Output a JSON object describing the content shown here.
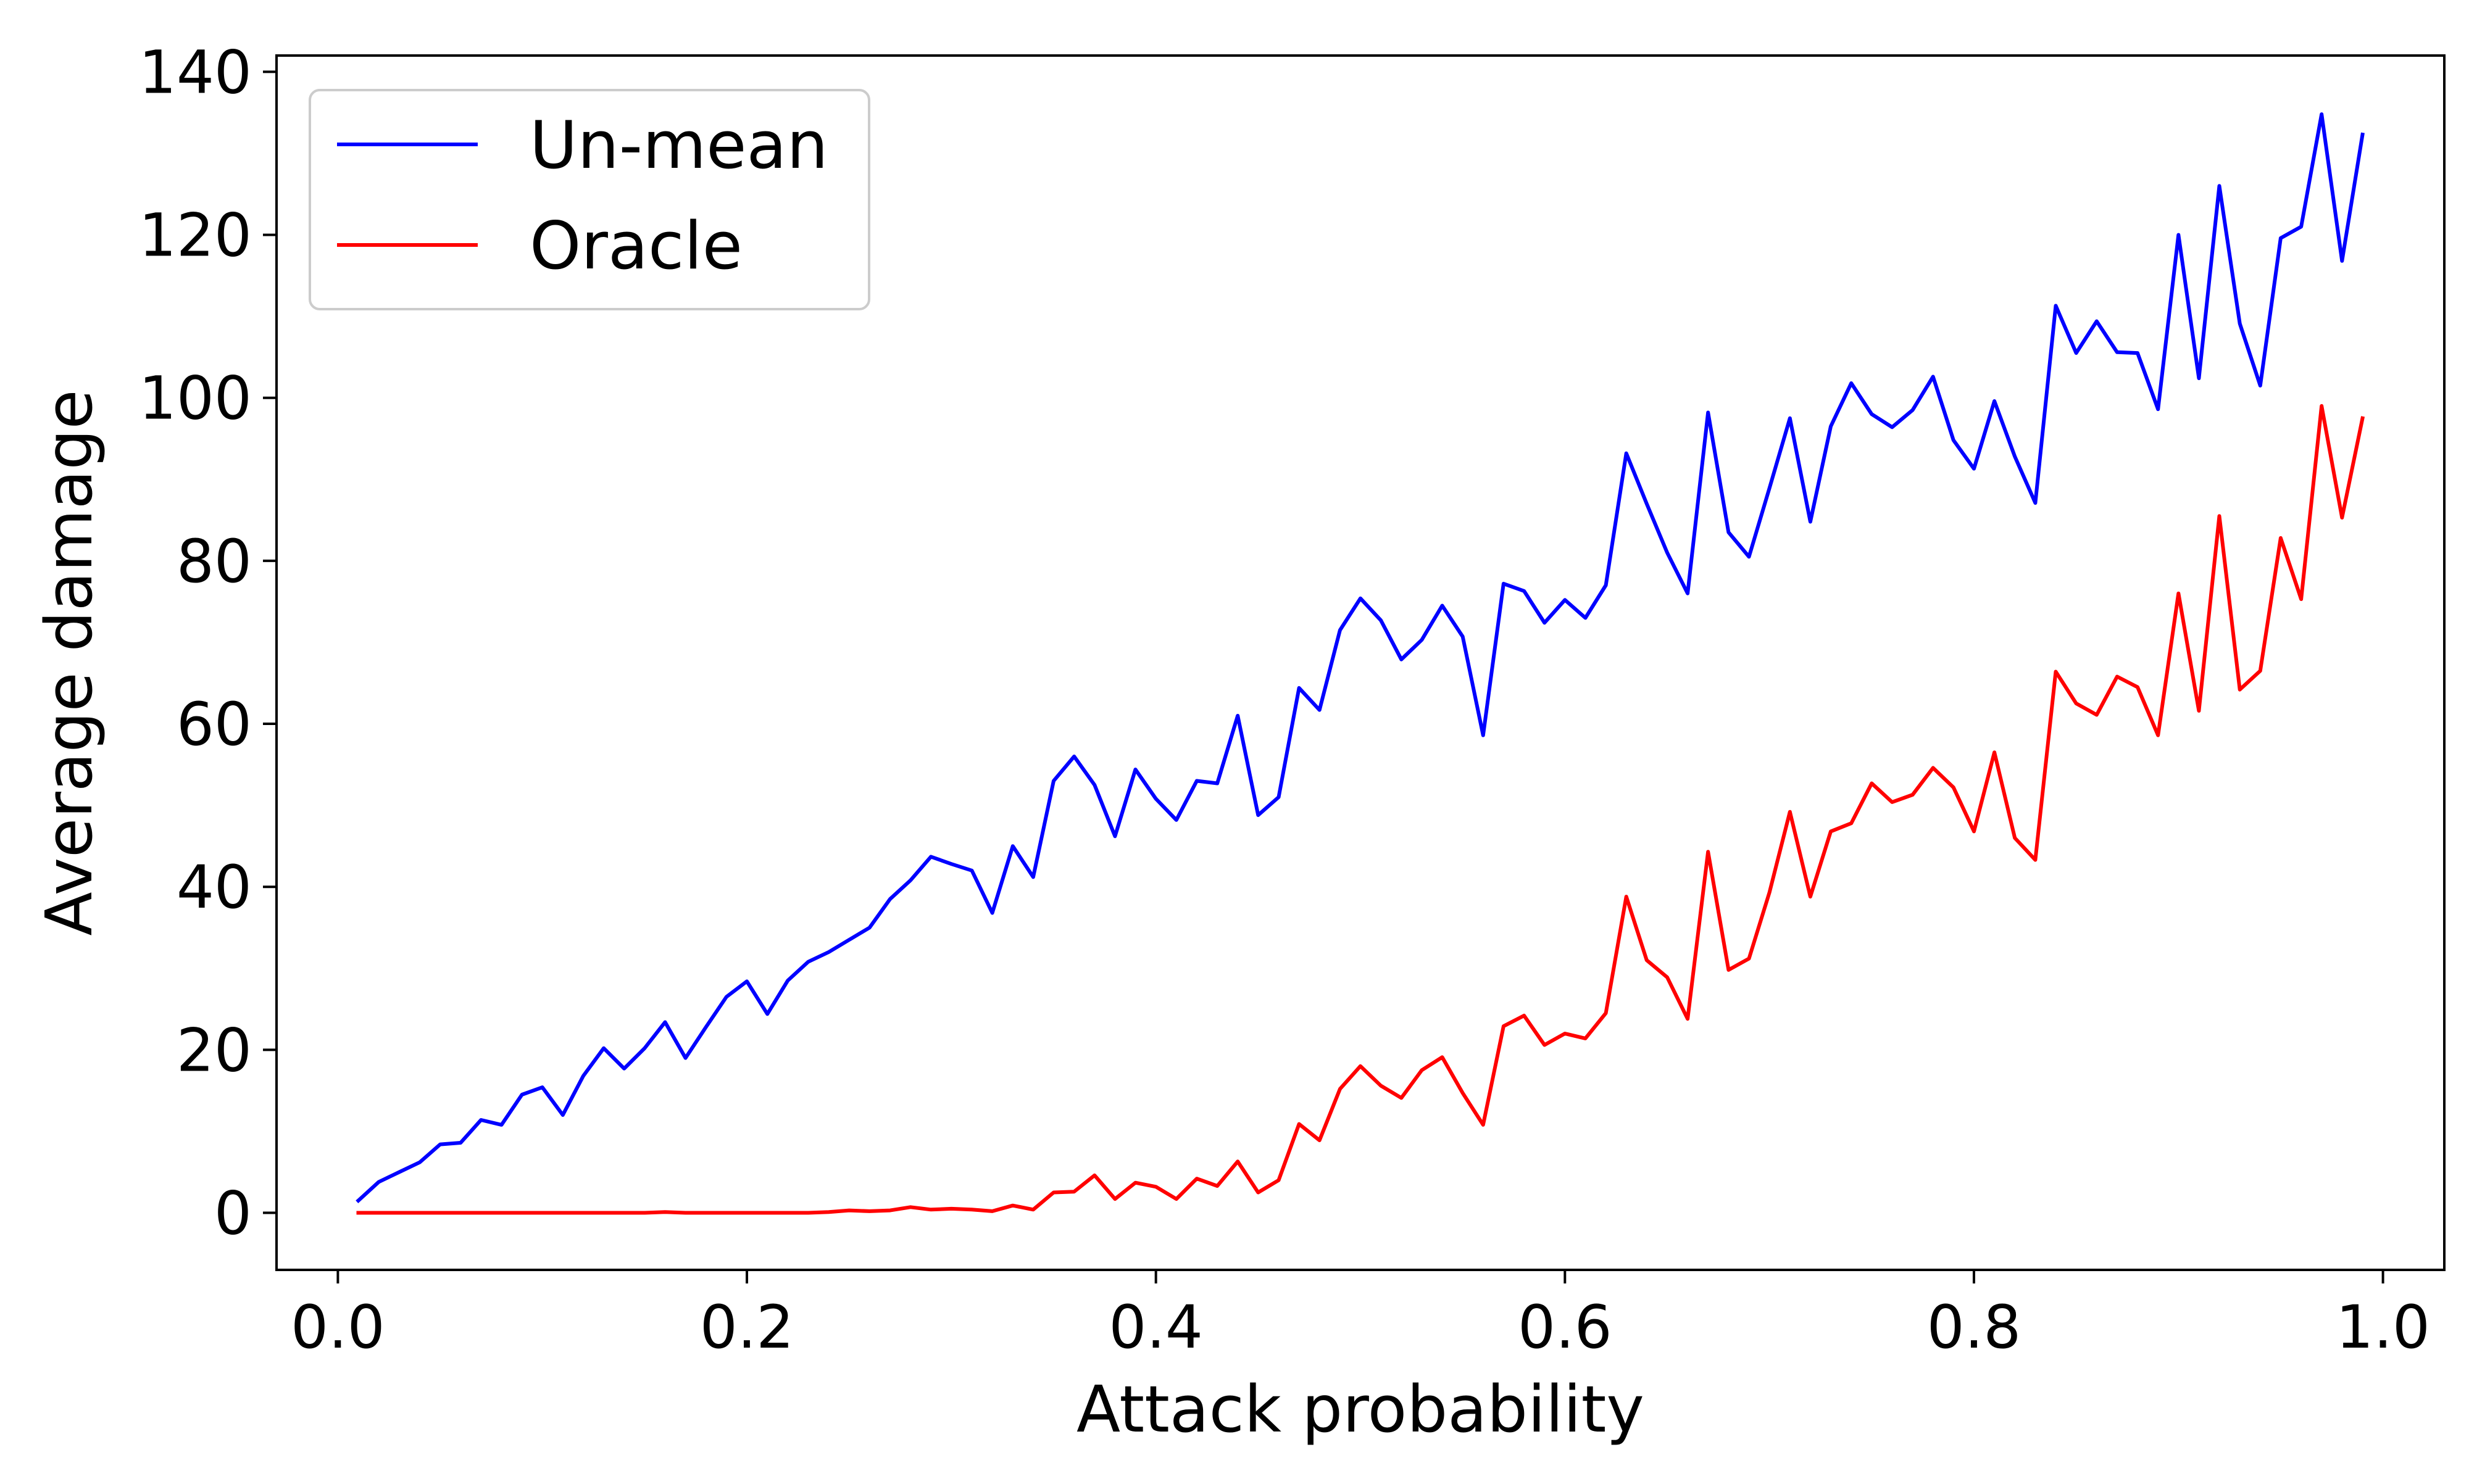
{
  "chart_data": {
    "type": "line",
    "title": "",
    "xlabel": "Attack probability",
    "ylabel": "Average damage",
    "xlim": [
      -0.03,
      1.03
    ],
    "ylim": [
      -7,
      142
    ],
    "x_ticks": [
      0.0,
      0.2,
      0.4,
      0.6,
      0.8,
      1.0
    ],
    "x_tick_labels": [
      "0.0",
      "0.2",
      "0.4",
      "0.6",
      "0.8",
      "1.0"
    ],
    "y_ticks": [
      0,
      20,
      40,
      60,
      80,
      100,
      120,
      140
    ],
    "y_tick_labels": [
      "0",
      "20",
      "40",
      "60",
      "80",
      "100",
      "120",
      "140"
    ],
    "grid": false,
    "legend_position": "top-left",
    "x": [
      0.01,
      0.02,
      0.03,
      0.04,
      0.05,
      0.06,
      0.07,
      0.08,
      0.09,
      0.1,
      0.11,
      0.12,
      0.13,
      0.14,
      0.15,
      0.16,
      0.17,
      0.18,
      0.19,
      0.2,
      0.21,
      0.22,
      0.23,
      0.24,
      0.25,
      0.26,
      0.27,
      0.28,
      0.29,
      0.3,
      0.31,
      0.32,
      0.33,
      0.34,
      0.35,
      0.36,
      0.37,
      0.38,
      0.39,
      0.4,
      0.41,
      0.42,
      0.43,
      0.44,
      0.45,
      0.46,
      0.47,
      0.48,
      0.49,
      0.5,
      0.51,
      0.52,
      0.53,
      0.54,
      0.55,
      0.56,
      0.57,
      0.58,
      0.59,
      0.6,
      0.61,
      0.62,
      0.63,
      0.64,
      0.65,
      0.66,
      0.67,
      0.68,
      0.69,
      0.7,
      0.71,
      0.72,
      0.73,
      0.74,
      0.75,
      0.76,
      0.77,
      0.78,
      0.79,
      0.8,
      0.81,
      0.82,
      0.83,
      0.84,
      0.85,
      0.86,
      0.87,
      0.88,
      0.89,
      0.9,
      0.91,
      0.92,
      0.93,
      0.94,
      0.95,
      0.96,
      0.97,
      0.98,
      0.99
    ],
    "series": [
      {
        "name": "Un-mean",
        "color": "#0000ff",
        "values": [
          1.5,
          3.8,
          5.0,
          6.2,
          8.4,
          8.6,
          11.4,
          10.8,
          14.5,
          15.4,
          12.0,
          16.8,
          20.2,
          17.7,
          20.2,
          23.4,
          19.0,
          22.8,
          26.5,
          28.4,
          24.4,
          28.5,
          30.8,
          32.0,
          33.5,
          35.0,
          38.5,
          40.8,
          43.7,
          42.8,
          42.0,
          36.8,
          45.0,
          41.2,
          53.0,
          56.0,
          52.5,
          46.2,
          54.4,
          50.8,
          48.2,
          53.0,
          52.7,
          61.0,
          48.8,
          51.0,
          64.4,
          61.7,
          71.5,
          75.4,
          72.7,
          67.9,
          70.3,
          74.5,
          70.7,
          58.6,
          77.2,
          76.3,
          72.4,
          75.2,
          73.0,
          77.0,
          93.2,
          87.0,
          81.0,
          76.0,
          98.2,
          83.5,
          80.5,
          88.9,
          97.5,
          84.8,
          96.5,
          101.8,
          98.0,
          96.4,
          98.5,
          102.6,
          94.8,
          91.3,
          99.6,
          92.8,
          87.1,
          111.3,
          105.5,
          109.4,
          105.6,
          105.5,
          98.6,
          120.0,
          102.4,
          126.0,
          109.1,
          101.5,
          119.6,
          121.0,
          134.8,
          116.8,
          132.3
        ]
      },
      {
        "name": "Oracle",
        "color": "#ff0000",
        "values": [
          0,
          0,
          0,
          0,
          0,
          0,
          0,
          0,
          0,
          0,
          0,
          0,
          0,
          0,
          0,
          0.1,
          0,
          0,
          0,
          0,
          0,
          0,
          0,
          0.1,
          0.3,
          0.2,
          0.3,
          0.7,
          0.4,
          0.5,
          0.4,
          0.2,
          0.9,
          0.4,
          2.5,
          2.6,
          4.6,
          1.7,
          3.7,
          3.2,
          1.7,
          4.2,
          3.3,
          6.3,
          2.5,
          4.0,
          10.9,
          8.9,
          15.2,
          18.0,
          15.6,
          14.1,
          17.5,
          19.1,
          14.7,
          10.8,
          22.9,
          24.2,
          20.6,
          22.0,
          21.4,
          24.5,
          38.8,
          31.0,
          28.9,
          23.8,
          44.3,
          29.8,
          31.2,
          39.3,
          49.2,
          38.8,
          46.8,
          47.8,
          52.7,
          50.4,
          51.3,
          54.6,
          52.2,
          46.8,
          56.5,
          46.0,
          43.3,
          66.4,
          62.5,
          61.1,
          65.8,
          64.5,
          58.6,
          76.0,
          61.6,
          85.5,
          64.2,
          66.5,
          82.8,
          75.3,
          99.0,
          85.3,
          97.5
        ]
      }
    ]
  }
}
